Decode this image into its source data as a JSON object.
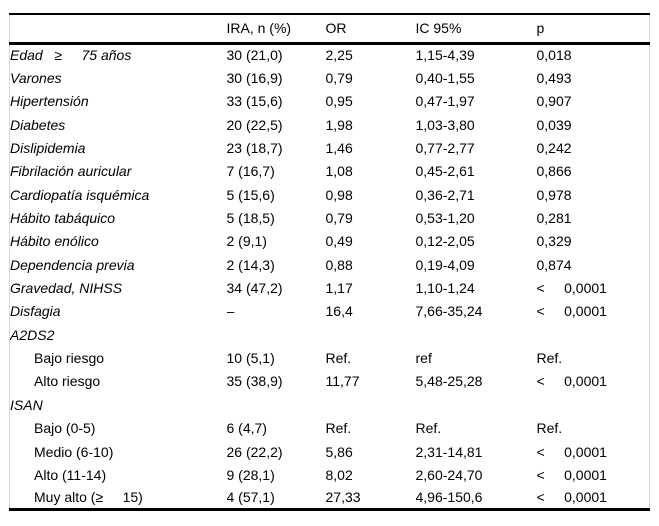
{
  "colors": {
    "background": "#ffffff",
    "text": "#000000",
    "rule_strong": "#000000",
    "rule_light": "#d8d8d8"
  },
  "table": {
    "columns": [
      "",
      "IRA, n (%)",
      "OR",
      "IC 95%",
      "p"
    ],
    "rows": [
      {
        "label": "Edad   ≥     75 años",
        "type": "main",
        "cells": [
          "30 (21,0)",
          "2,25",
          "1,15-4,39",
          "0,018"
        ]
      },
      {
        "label": "Varones",
        "type": "main",
        "cells": [
          "30 (16,9)",
          "0,79",
          "0,40-1,55",
          "0,493"
        ]
      },
      {
        "label": "Hipertensión",
        "type": "main",
        "cells": [
          "33 (15,6)",
          "0,95",
          "0,47-1,97",
          "0,907"
        ]
      },
      {
        "label": "Diabetes",
        "type": "main",
        "cells": [
          "20 (22,5)",
          "1,98",
          "1,03-3,80",
          "0,039"
        ]
      },
      {
        "label": "Dislipidemia",
        "type": "main",
        "cells": [
          "23 (18,7)",
          "1,46",
          "0,77-2,77",
          "0,242"
        ]
      },
      {
        "label": "Fibrilación auricular",
        "type": "main",
        "cells": [
          "7 (16,7)",
          "1,08",
          "0,45-2,61",
          "0,866"
        ]
      },
      {
        "label": "Cardiopatía isquémica",
        "type": "main",
        "cells": [
          "5 (15,6)",
          "0,98",
          "0,36-2,71",
          "0,978"
        ]
      },
      {
        "label": "Hábito tabáquico",
        "type": "main",
        "cells": [
          "5 (18,5)",
          "0,79",
          "0,53-1,20",
          "0,281"
        ]
      },
      {
        "label": "Hábito enólico",
        "type": "main",
        "cells": [
          "2 (9,1)",
          "0,49",
          "0,12-2,05",
          "0,329"
        ]
      },
      {
        "label": "Dependencia previa",
        "type": "main",
        "cells": [
          "2 (14,3)",
          "0,88",
          "0,19-4,09",
          "0,874"
        ]
      },
      {
        "label": "Gravedad, NIHSS",
        "type": "main",
        "cells": [
          "34 (47,2)",
          "1,17",
          "1,10-1,24",
          "<     0,0001"
        ]
      },
      {
        "label": "Disfagia",
        "type": "main",
        "cells": [
          "–",
          "16,4",
          "7,66-35,24",
          "<     0,0001"
        ]
      },
      {
        "label": "A2DS2",
        "type": "section",
        "cells": [
          "",
          "",
          "",
          ""
        ]
      },
      {
        "label": "Bajo riesgo",
        "type": "sub",
        "cells": [
          "10 (5,1)",
          "Ref.",
          "ref",
          "Ref."
        ]
      },
      {
        "label": "Alto riesgo",
        "type": "sub",
        "cells": [
          "35 (38,9)",
          "11,77",
          "5,48-25,28",
          "<     0,0001"
        ]
      },
      {
        "label": "ISAN",
        "type": "section",
        "cells": [
          "",
          "",
          "",
          ""
        ]
      },
      {
        "label": "Bajo (0-5)",
        "type": "sub",
        "cells": [
          "6 (4,7)",
          "Ref.",
          "Ref.",
          "Ref."
        ]
      },
      {
        "label": "Medio (6-10)",
        "type": "sub",
        "cells": [
          "26 (22,2)",
          "5,86",
          "2,31-14,81",
          "<     0,0001"
        ]
      },
      {
        "label": "Alto (11-14)",
        "type": "sub",
        "cells": [
          "9 (28,1)",
          "8,02",
          "2,60-24,70",
          "<     0,0001"
        ]
      },
      {
        "label": "Muy alto (≥     15)",
        "type": "sub",
        "cells": [
          "4 (57,1)",
          "27,33",
          "4,96-150,6",
          "<     0,0001"
        ]
      }
    ]
  }
}
